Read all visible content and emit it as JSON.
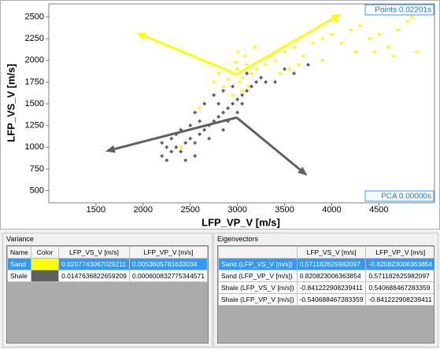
{
  "chart_data": {
    "type": "scatter",
    "xlabel": "LFP_VP_V [m/s]",
    "ylabel": "LFP_VS_V [m/s]",
    "xlim": [
      1000,
      5090
    ],
    "ylim": [
      360,
      2650
    ],
    "xticks": [
      1500,
      2000,
      2500,
      3000,
      3500,
      4000,
      4500
    ],
    "yticks": [
      500,
      750,
      1000,
      1250,
      1500,
      1750,
      2000,
      2250,
      2500
    ],
    "series": [
      {
        "color": "#ffff00",
        "x": [
          2950,
          3000,
          3050,
          3100,
          2900,
          3150,
          3020,
          2980,
          3080,
          3200,
          3250,
          2850,
          3120,
          3300,
          3350,
          3000,
          3180,
          3400,
          3500,
          3600,
          3700,
          3800,
          3900,
          4000,
          4100,
          4200,
          4300,
          4400,
          4500,
          4600,
          4700,
          4800,
          4900,
          4850,
          4650,
          4250,
          3550,
          3450,
          2800,
          2750,
          3050,
          2950,
          3900,
          4450,
          2600,
          2400,
          3650,
          4050
        ],
        "y": [
          1850,
          1900,
          1800,
          1950,
          1780,
          1850,
          1750,
          1980,
          2050,
          1900,
          2000,
          1700,
          1700,
          1950,
          2050,
          2100,
          2150,
          2000,
          2100,
          2150,
          2050,
          2200,
          2250,
          2300,
          2200,
          2350,
          2400,
          2250,
          2300,
          2150,
          2350,
          2450,
          2100,
          2500,
          2050,
          2100,
          1900,
          1850,
          1850,
          1750,
          1650,
          1600,
          2000,
          2100,
          1450,
          1000,
          1950,
          2450
        ]
      },
      {
        "color": "#606060",
        "x": [
          2200,
          2250,
          2300,
          2350,
          2400,
          2450,
          2500,
          2550,
          2600,
          2650,
          2700,
          2750,
          2800,
          2850,
          2900,
          2950,
          3000,
          3050,
          3100,
          3150,
          3200,
          3250,
          3300,
          2700,
          2600,
          2800,
          2900,
          3000,
          2500,
          2350,
          2250,
          2400,
          2550,
          2650,
          2750,
          2850,
          2950,
          3100,
          3400,
          3500,
          3600,
          3750,
          2850,
          2550,
          2450,
          2300,
          2200,
          3050
        ],
        "y": [
          900,
          850,
          950,
          1000,
          950,
          1050,
          1100,
          1050,
          1150,
          1200,
          1250,
          1300,
          1350,
          1400,
          1450,
          1500,
          1550,
          1600,
          1650,
          1700,
          1750,
          1800,
          1750,
          1100,
          1300,
          1500,
          1300,
          1400,
          1250,
          1150,
          1000,
          1200,
          1400,
          1500,
          1600,
          1650,
          1700,
          1850,
          1750,
          1900,
          1850,
          1950,
          1200,
          900,
          850,
          1100,
          1050,
          1500
        ]
      }
    ],
    "arrows": [
      {
        "color": "#ffff00",
        "x": [
          2992,
          4100
        ],
        "y": [
          1840,
          2536
        ]
      },
      {
        "color": "#ffff00",
        "x": [
          2992,
          1925
        ],
        "y": [
          1840,
          2319
        ]
      },
      {
        "color": "#606060",
        "x": [
          2992,
          1600
        ],
        "y": [
          1342,
          952
        ]
      },
      {
        "color": "#606060",
        "x": [
          2992,
          3742
        ],
        "y": [
          1342,
          672
        ]
      }
    ],
    "annotations": [
      "Points 0.02201s",
      "PCA 0.00000s"
    ]
  },
  "variance": {
    "title": "Variance",
    "columns": [
      "Name",
      "Color",
      "LFP_VS_V [m/s]",
      "LFP_VP_V [m/s]"
    ],
    "rows": [
      [
        "Sand",
        "#ffff00",
        0.0207743067029211,
        0.0053605781633034
      ],
      [
        "Shale",
        "#606060",
        0.0147636822659209,
        0.000600832775344571
      ]
    ]
  },
  "eigenvectors": {
    "title": "Eigenvectors",
    "columns": [
      "LFP_VS_V [m/s]",
      "LFP_VP_V [m/s]"
    ],
    "rows": [
      [
        "Sand (LFP_VS_V [m/s])",
        0.571182625982097,
        -0.820823006363854
      ],
      [
        "Sand (LFP_VP_V [m/s])",
        0.820823006363854,
        0.571182625982097
      ],
      [
        "Shale (LFP_VS_V [m/s])",
        -0.841222908239411,
        0.540688467283359
      ],
      [
        "Shale (LFP_VP_V [m/s])",
        -0.540688467283359,
        -0.841222908239411
      ]
    ]
  }
}
